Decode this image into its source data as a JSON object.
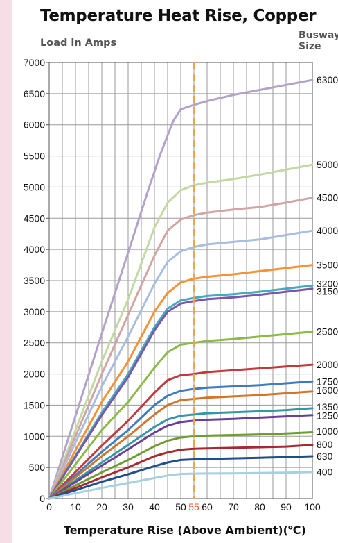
{
  "chart_data": {
    "type": "line",
    "title": "Temperature Heat Rise, Copper",
    "ylabel": "Load in Amps",
    "size_label_line1": "Busway",
    "size_label_line2": "Size",
    "xlabel_text": "Temperature Rise (Above Ambient)(",
    "xlabel_degree": "o",
    "xlabel_unit": "C)",
    "xlim": [
      0,
      100
    ],
    "ylim": [
      0,
      7000
    ],
    "x_ticks": [
      {
        "value": 0,
        "label": "0"
      },
      {
        "value": 10,
        "label": "10"
      },
      {
        "value": 20,
        "label": "20"
      },
      {
        "value": 30,
        "label": "30"
      },
      {
        "value": 40,
        "label": "40"
      },
      {
        "value": 50,
        "label": "50"
      },
      {
        "value": 55,
        "label": "55"
      },
      {
        "value": 60,
        "label": "60"
      },
      {
        "value": 70,
        "label": "70"
      },
      {
        "value": 80,
        "label": "80"
      },
      {
        "value": 90,
        "label": "90"
      },
      {
        "value": 100,
        "label": "100"
      }
    ],
    "highlight_x": 55,
    "highlight_color": "#e8542b",
    "y_ticks": [
      0,
      500,
      1000,
      1500,
      2000,
      2500,
      3000,
      3500,
      4000,
      4500,
      5000,
      5500,
      6000,
      6500,
      7000
    ],
    "grid": true,
    "series": [
      {
        "name": "6300",
        "color": "#b3a1cb",
        "points": [
          [
            0,
            0
          ],
          [
            20,
            2650
          ],
          [
            30,
            3950
          ],
          [
            38,
            5000
          ],
          [
            42,
            5500
          ],
          [
            47,
            6050
          ],
          [
            50,
            6250
          ],
          [
            55,
            6320
          ],
          [
            60,
            6380
          ],
          [
            70,
            6480
          ],
          [
            80,
            6560
          ],
          [
            90,
            6640
          ],
          [
            100,
            6720
          ]
        ]
      },
      {
        "name": "5000",
        "color": "#c3d9a2",
        "points": [
          [
            0,
            0
          ],
          [
            20,
            2200
          ],
          [
            30,
            3200
          ],
          [
            40,
            4350
          ],
          [
            45,
            4750
          ],
          [
            50,
            4950
          ],
          [
            55,
            5030
          ],
          [
            60,
            5070
          ],
          [
            70,
            5130
          ],
          [
            80,
            5200
          ],
          [
            90,
            5280
          ],
          [
            100,
            5360
          ]
        ]
      },
      {
        "name": "4500",
        "color": "#d3a4a4",
        "points": [
          [
            0,
            0
          ],
          [
            20,
            2000
          ],
          [
            30,
            2950
          ],
          [
            40,
            3900
          ],
          [
            45,
            4300
          ],
          [
            50,
            4480
          ],
          [
            55,
            4550
          ],
          [
            60,
            4590
          ],
          [
            70,
            4640
          ],
          [
            80,
            4680
          ],
          [
            90,
            4750
          ],
          [
            100,
            4830
          ]
        ]
      },
      {
        "name": "4000",
        "color": "#a7bde1",
        "points": [
          [
            0,
            0
          ],
          [
            20,
            1800
          ],
          [
            30,
            2600
          ],
          [
            40,
            3450
          ],
          [
            45,
            3800
          ],
          [
            50,
            3970
          ],
          [
            55,
            4040
          ],
          [
            60,
            4080
          ],
          [
            70,
            4120
          ],
          [
            80,
            4160
          ],
          [
            90,
            4230
          ],
          [
            100,
            4300
          ]
        ]
      },
      {
        "name": "3500",
        "color": "#f69234",
        "points": [
          [
            0,
            0
          ],
          [
            20,
            1550
          ],
          [
            30,
            2200
          ],
          [
            40,
            3000
          ],
          [
            45,
            3300
          ],
          [
            50,
            3470
          ],
          [
            55,
            3530
          ],
          [
            60,
            3560
          ],
          [
            70,
            3600
          ],
          [
            80,
            3650
          ],
          [
            90,
            3700
          ],
          [
            100,
            3750
          ]
        ]
      },
      {
        "name": "3200",
        "color": "#46a9c2",
        "points": [
          [
            0,
            0
          ],
          [
            20,
            1380
          ],
          [
            30,
            2000
          ],
          [
            40,
            2750
          ],
          [
            45,
            3050
          ],
          [
            50,
            3180
          ],
          [
            55,
            3220
          ],
          [
            60,
            3250
          ],
          [
            70,
            3280
          ],
          [
            80,
            3320
          ],
          [
            90,
            3370
          ],
          [
            100,
            3420
          ]
        ]
      },
      {
        "name": "3150",
        "color": "#7a57a8",
        "points": [
          [
            0,
            0
          ],
          [
            20,
            1340
          ],
          [
            30,
            1950
          ],
          [
            40,
            2700
          ],
          [
            45,
            3000
          ],
          [
            50,
            3130
          ],
          [
            55,
            3170
          ],
          [
            60,
            3200
          ],
          [
            70,
            3230
          ],
          [
            80,
            3270
          ],
          [
            90,
            3320
          ],
          [
            100,
            3370
          ]
        ]
      },
      {
        "name": "2500",
        "color": "#8cbb45",
        "points": [
          [
            0,
            0
          ],
          [
            20,
            1100
          ],
          [
            30,
            1550
          ],
          [
            40,
            2100
          ],
          [
            45,
            2350
          ],
          [
            50,
            2470
          ],
          [
            55,
            2500
          ],
          [
            60,
            2530
          ],
          [
            70,
            2560
          ],
          [
            80,
            2600
          ],
          [
            90,
            2640
          ],
          [
            100,
            2680
          ]
        ]
      },
      {
        "name": "2000",
        "color": "#c1393b",
        "points": [
          [
            0,
            0
          ],
          [
            20,
            850
          ],
          [
            30,
            1250
          ],
          [
            40,
            1700
          ],
          [
            45,
            1900
          ],
          [
            50,
            1980
          ],
          [
            55,
            2000
          ],
          [
            60,
            2030
          ],
          [
            70,
            2060
          ],
          [
            80,
            2090
          ],
          [
            90,
            2120
          ],
          [
            100,
            2150
          ]
        ]
      },
      {
        "name": "1750",
        "color": "#3f7cbf",
        "points": [
          [
            0,
            0
          ],
          [
            20,
            750
          ],
          [
            30,
            1100
          ],
          [
            40,
            1500
          ],
          [
            45,
            1650
          ],
          [
            50,
            1730
          ],
          [
            55,
            1760
          ],
          [
            60,
            1780
          ],
          [
            70,
            1800
          ],
          [
            80,
            1820
          ],
          [
            90,
            1850
          ],
          [
            100,
            1880
          ]
        ]
      },
      {
        "name": "1600",
        "color": "#d2752c",
        "points": [
          [
            0,
            0
          ],
          [
            20,
            680
          ],
          [
            30,
            1000
          ],
          [
            40,
            1350
          ],
          [
            45,
            1500
          ],
          [
            50,
            1580
          ],
          [
            55,
            1600
          ],
          [
            60,
            1620
          ],
          [
            70,
            1640
          ],
          [
            80,
            1660
          ],
          [
            90,
            1690
          ],
          [
            100,
            1720
          ]
        ]
      },
      {
        "name": "1350",
        "color": "#3696a8",
        "points": [
          [
            0,
            0
          ],
          [
            20,
            580
          ],
          [
            30,
            860
          ],
          [
            40,
            1150
          ],
          [
            45,
            1270
          ],
          [
            50,
            1330
          ],
          [
            55,
            1350
          ],
          [
            60,
            1370
          ],
          [
            70,
            1385
          ],
          [
            80,
            1400
          ],
          [
            90,
            1420
          ],
          [
            100,
            1450
          ]
        ]
      },
      {
        "name": "1250",
        "color": "#6b3f96",
        "points": [
          [
            0,
            0
          ],
          [
            20,
            530
          ],
          [
            30,
            790
          ],
          [
            40,
            1060
          ],
          [
            45,
            1170
          ],
          [
            50,
            1230
          ],
          [
            55,
            1250
          ],
          [
            60,
            1265
          ],
          [
            70,
            1280
          ],
          [
            80,
            1300
          ],
          [
            90,
            1320
          ],
          [
            100,
            1340
          ]
        ]
      },
      {
        "name": "1000",
        "color": "#6f9c2f",
        "points": [
          [
            0,
            0
          ],
          [
            20,
            420
          ],
          [
            30,
            620
          ],
          [
            40,
            840
          ],
          [
            45,
            930
          ],
          [
            50,
            980
          ],
          [
            55,
            1000
          ],
          [
            60,
            1010
          ],
          [
            70,
            1020
          ],
          [
            80,
            1030
          ],
          [
            90,
            1045
          ],
          [
            100,
            1065
          ]
        ]
      },
      {
        "name": "800",
        "color": "#a52a30",
        "points": [
          [
            0,
            0
          ],
          [
            20,
            340
          ],
          [
            30,
            500
          ],
          [
            40,
            680
          ],
          [
            45,
            740
          ],
          [
            50,
            785
          ],
          [
            55,
            800
          ],
          [
            60,
            805
          ],
          [
            70,
            815
          ],
          [
            80,
            825
          ],
          [
            90,
            835
          ],
          [
            100,
            860
          ]
        ]
      },
      {
        "name": "630",
        "color": "#1f4e8c",
        "points": [
          [
            0,
            0
          ],
          [
            20,
            270
          ],
          [
            30,
            390
          ],
          [
            40,
            520
          ],
          [
            45,
            580
          ],
          [
            50,
            620
          ],
          [
            55,
            630
          ],
          [
            60,
            635
          ],
          [
            70,
            645
          ],
          [
            80,
            655
          ],
          [
            90,
            665
          ],
          [
            100,
            680
          ]
        ]
      },
      {
        "name": "400",
        "color": "#a6cfe0",
        "points": [
          [
            0,
            0
          ],
          [
            20,
            170
          ],
          [
            30,
            250
          ],
          [
            40,
            330
          ],
          [
            45,
            370
          ],
          [
            50,
            395
          ],
          [
            55,
            400
          ],
          [
            60,
            402
          ],
          [
            70,
            405
          ],
          [
            80,
            410
          ],
          [
            90,
            415
          ],
          [
            100,
            425
          ]
        ]
      }
    ],
    "series_labels": [
      {
        "series": "6300",
        "label": "6300",
        "label_y": 6720
      },
      {
        "series": "5000",
        "label": "5000",
        "label_y": 5360
      },
      {
        "series": "4500",
        "label": "4500",
        "label_y": 4830
      },
      {
        "series": "4000",
        "label": "4000",
        "label_y": 4300
      },
      {
        "series": "3500",
        "label": "3500",
        "label_y": 3750
      },
      {
        "series": "3200",
        "label": "3200",
        "label_y": 3450
      },
      {
        "series": "3150",
        "label": "3150",
        "label_y": 3330
      },
      {
        "series": "2500",
        "label": "2500",
        "label_y": 2680
      },
      {
        "series": "2000",
        "label": "2000",
        "label_y": 2150
      },
      {
        "series": "1750",
        "label": "1750",
        "label_y": 1880
      },
      {
        "series": "1600",
        "label": "1600",
        "label_y": 1740
      },
      {
        "series": "1350",
        "label": "1350",
        "label_y": 1470
      },
      {
        "series": "1250",
        "label": "1250",
        "label_y": 1330
      },
      {
        "series": "1000",
        "label": "1000",
        "label_y": 1080
      },
      {
        "series": "800",
        "label": "800",
        "label_y": 870
      },
      {
        "series": "630",
        "label": "630",
        "label_y": 680
      },
      {
        "series": "400",
        "label": "400",
        "label_y": 430
      }
    ]
  }
}
